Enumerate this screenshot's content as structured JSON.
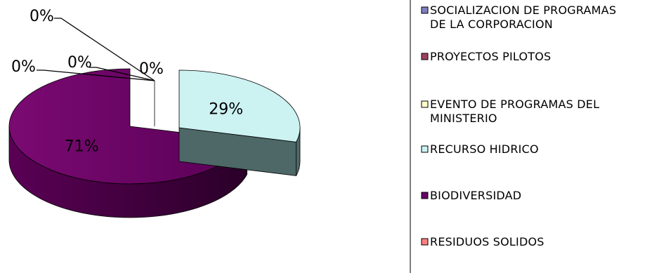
{
  "chart_data": {
    "type": "pie",
    "variant": "3d-exploded",
    "title": "",
    "slices": [
      {
        "label": "SOCIALIZACION DE PROGRAMAS DE LA CORPORACION",
        "legend_lines": [
          "SOCIALIZACION DE PROGRAMAS",
          "DE LA CORPORACION"
        ],
        "value": 0,
        "display": "0%",
        "color": "#8080c0"
      },
      {
        "label": "PROYECTOS PILOTOS",
        "legend_lines": [
          "PROYECTOS PILOTOS"
        ],
        "value": 0,
        "display": "0%",
        "color": "#a04060"
      },
      {
        "label": "EVENTO DE PROGRAMAS DEL MINISTERIO",
        "legend_lines": [
          "EVENTO DE PROGRAMAS DEL",
          "MINISTERIO"
        ],
        "value": 0,
        "display": "0%",
        "color": "#ffffcc"
      },
      {
        "label": "RECURSO HIDRICO",
        "legend_lines": [
          "RECURSO HIDRICO"
        ],
        "value": 29,
        "display": "29%",
        "color": "#ccf2f2"
      },
      {
        "label": "BIODIVERSIDAD",
        "legend_lines": [
          "BIODIVERSIDAD"
        ],
        "value": 71,
        "display": "71%",
        "color": "#660066"
      },
      {
        "label": "RESIDUOS SOLIDOS",
        "legend_lines": [
          "RESIDUOS SOLIDOS"
        ],
        "value": 0,
        "display": "0%",
        "color": "#ff8080"
      }
    ],
    "legend_placement": "right"
  }
}
